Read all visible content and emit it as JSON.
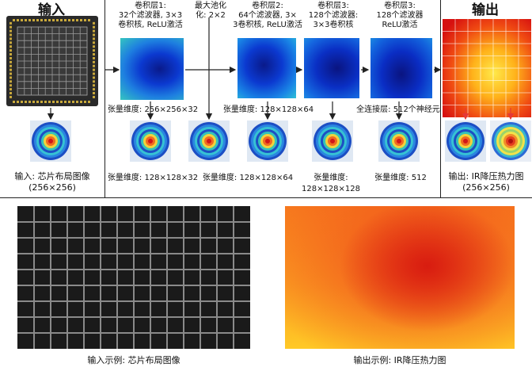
{
  "header": {
    "input_title": "输入",
    "output_title": "输出"
  },
  "layers": {
    "conv1": {
      "line1": "卷积层1:",
      "line2": "32个滤波器, 3×3",
      "line3": "卷积核, ReLU激活"
    },
    "pool": {
      "line1": "最大池化",
      "line2": "化: 2×2"
    },
    "conv2": {
      "line1": "卷积层2:",
      "line2": "64个滤波器, 3×",
      "line3": "3卷积核, ReLU激活"
    },
    "conv3a": {
      "line1": "卷积层3:",
      "line2": "128个滤波器:",
      "line3": "3×3卷积核"
    },
    "conv3b": {
      "line1": "卷积层3:",
      "line2": "128个滤波器",
      "line3": "ReLU激活"
    }
  },
  "tensors": {
    "t1": "张量维度: 256×256×32",
    "t2": "张量维度: 128×128×64",
    "fc": "全连接层: 512个神经元"
  },
  "bottom_dims": {
    "d1": "张量维度: 128×128×32",
    "d2": "张量维度: 128×128×64",
    "d3a": "张量维度:",
    "d3b": "128×128×128",
    "d4": "张量维度: 512"
  },
  "input_caption": {
    "line1": "输入: 芯片布局图像",
    "line2": "(256×256)"
  },
  "output_caption": {
    "line1": "输出: IR降压热力图",
    "line2": "(256×256)"
  },
  "examples": {
    "input_label": "输入示例: 芯片布局图像",
    "output_label": "输出示例: IR降压热力图"
  },
  "colors": {
    "arrow": "#222222",
    "red_arrow": "#e53935",
    "grid_bg": "#1a1a1a",
    "grid_line": "#8a8a8a"
  }
}
